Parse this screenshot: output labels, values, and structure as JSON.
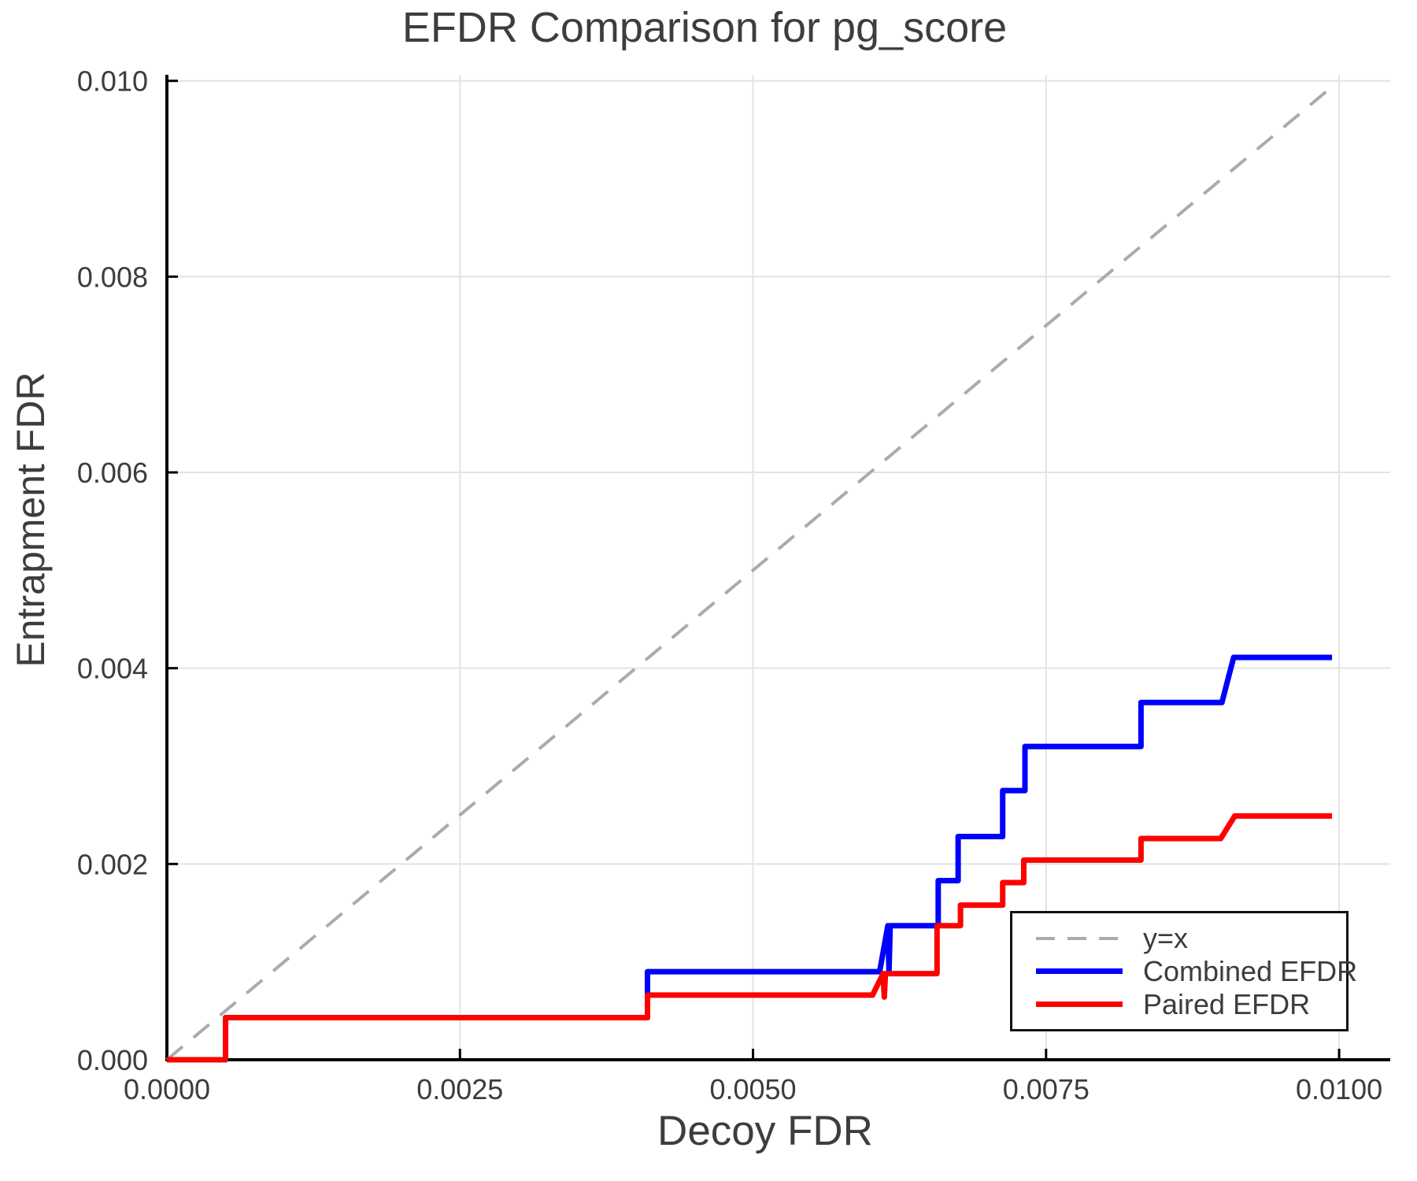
{
  "chart_data": {
    "type": "line",
    "title": "EFDR Comparison for pg_score",
    "xlabel": "Decoy FDR",
    "ylabel": "Entrapment FDR",
    "xlim": [
      0,
      0.010436
    ],
    "ylim": [
      0,
      0.010062
    ],
    "grid": true,
    "xticks": [
      0,
      0.0025,
      0.005,
      0.0075,
      0.01
    ],
    "xtick_labels": [
      "0.0000",
      "0.0025",
      "0.0050",
      "0.0075",
      "0.0100"
    ],
    "yticks": [
      0,
      0.002,
      0.004,
      0.006,
      0.008,
      0.01
    ],
    "ytick_labels": [
      "0.000",
      "0.002",
      "0.004",
      "0.006",
      "0.008",
      "0.010"
    ],
    "colors": {
      "grid": "#e3e3e3",
      "axis": "#000000",
      "tick_text": "#3c3c3c",
      "title_text": "#3d3d3d",
      "background": "#ffffff",
      "legend_border": "#111111"
    },
    "legend": {
      "position": "bottom-right"
    },
    "series": [
      {
        "name": "y=x",
        "color": "#ababab",
        "width": 4,
        "dash": "26 18",
        "x": [
          0,
          0.00997
        ],
        "y": [
          0,
          0.00997
        ]
      },
      {
        "name": "Combined EFDR",
        "color": "#0000fe",
        "width": 7,
        "dash": null,
        "x": [
          0,
          0.0005,
          0.0005,
          0.0041,
          0.0041,
          0.00608,
          0.00615,
          0.00616,
          0.00617,
          0.00658,
          0.00658,
          0.00675,
          0.00675,
          0.00713,
          0.00713,
          0.00732,
          0.00732,
          0.00831,
          0.00831,
          0.009,
          0.0091,
          0.00994
        ],
        "y": [
          0,
          0,
          0.00043,
          0.00043,
          0.0009,
          0.0009,
          0.00137,
          0.0009,
          0.00137,
          0.00137,
          0.00183,
          0.00183,
          0.00228,
          0.00228,
          0.00275,
          0.00275,
          0.0032,
          0.0032,
          0.00365,
          0.00365,
          0.00411,
          0.00411
        ]
      },
      {
        "name": "Paired EFDR",
        "color": "#fe0000",
        "width": 7,
        "dash": null,
        "x": [
          0,
          0.0005,
          0.0005,
          0.0041,
          0.0041,
          0.00602,
          0.00611,
          0.00612,
          0.00613,
          0.00657,
          0.00657,
          0.00677,
          0.00677,
          0.00713,
          0.00713,
          0.00731,
          0.00731,
          0.00831,
          0.00831,
          0.00899,
          0.00911,
          0.00994
        ],
        "y": [
          0,
          0,
          0.00043,
          0.00043,
          0.00066,
          0.00066,
          0.00088,
          0.00064,
          0.00088,
          0.00088,
          0.00137,
          0.00137,
          0.00158,
          0.00158,
          0.00181,
          0.00181,
          0.00204,
          0.00204,
          0.00226,
          0.00226,
          0.00249,
          0.00249
        ]
      }
    ]
  }
}
